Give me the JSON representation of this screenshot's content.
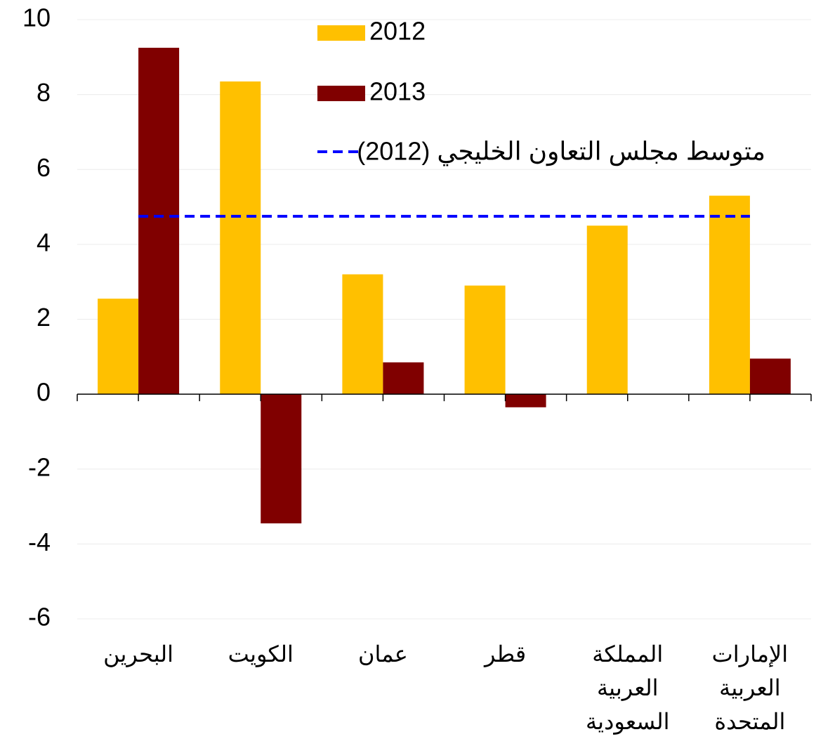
{
  "chart_data": {
    "type": "bar",
    "categories": [
      "البحرين",
      "الكويت",
      "عمان",
      "قطر",
      "المملكة العربية السعودية",
      "الإمارات العربية المتحدة"
    ],
    "series": [
      {
        "name": "2012",
        "color": "#ffc000",
        "values": [
          2.55,
          8.35,
          3.2,
          2.9,
          4.5,
          5.3
        ]
      },
      {
        "name": "2013",
        "color": "#800000",
        "values": [
          9.25,
          -3.45,
          0.85,
          -0.35,
          null,
          0.95
        ]
      }
    ],
    "reference_line": {
      "name": "متوسط مجلس التعاون الخليجي (2012)",
      "value": 4.75,
      "color": "#0000ff"
    },
    "ylim": [
      -6,
      10
    ],
    "yticks": [
      -6,
      -4,
      -2,
      0,
      2,
      4,
      6,
      8,
      10
    ],
    "grid": true
  }
}
